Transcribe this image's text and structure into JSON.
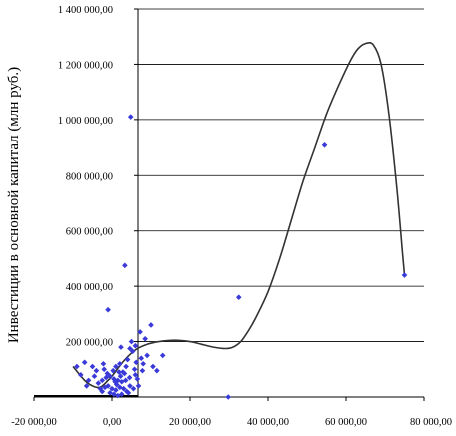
{
  "chart_data": {
    "type": "scatter",
    "title": "",
    "xlabel": "",
    "ylabel": "Инвестиции в основной капитал (млн руб.)",
    "xlim": [
      -20000,
      80000
    ],
    "ylim": [
      0,
      1400000
    ],
    "x_ticks": [
      -20000,
      0,
      20000,
      40000,
      60000,
      80000
    ],
    "x_tick_labels": [
      "-20 000,00",
      "0,00",
      "20 000,00",
      "40 000,00",
      "60 000,00",
      "80 000,00"
    ],
    "y_ticks": [
      0,
      200000,
      400000,
      600000,
      800000,
      1000000,
      1200000,
      1400000
    ],
    "y_tick_labels": [
      "",
      "200 000,00",
      "400 000,00",
      "600 000,00",
      "800 000,00",
      "1 000 000,00",
      "1 200 000,00",
      "1 400 000,00"
    ],
    "grid": "horizontal",
    "colors": {
      "points": "#3a3ad8",
      "trend": "#333333",
      "grid": "#000000"
    },
    "series": [
      {
        "kind": "points",
        "points": [
          [
            4800,
            1010000
          ],
          [
            3300,
            475000
          ],
          [
            -1000,
            315000
          ],
          [
            32500,
            360000
          ],
          [
            54500,
            910000
          ],
          [
            75000,
            440000
          ],
          [
            29800,
            0
          ],
          [
            10000,
            260000
          ],
          [
            8500,
            210000
          ],
          [
            7200,
            235000
          ],
          [
            5000,
            200000
          ],
          [
            6000,
            185000
          ],
          [
            4600,
            175000
          ],
          [
            5300,
            165000
          ],
          [
            2300,
            180000
          ],
          [
            7500,
            140000
          ],
          [
            9000,
            150000
          ],
          [
            13000,
            150000
          ],
          [
            8000,
            120000
          ],
          [
            10500,
            110000
          ],
          [
            11500,
            95000
          ],
          [
            4000,
            135000
          ],
          [
            2000,
            120000
          ],
          [
            1000,
            110000
          ],
          [
            -2000,
            100000
          ],
          [
            -4000,
            95000
          ],
          [
            -5000,
            110000
          ],
          [
            -8000,
            80000
          ],
          [
            -1500,
            70000
          ],
          [
            -2500,
            60000
          ],
          [
            -3500,
            50000
          ],
          [
            500,
            65000
          ],
          [
            1500,
            60000
          ],
          [
            2500,
            55000
          ],
          [
            3500,
            60000
          ],
          [
            4500,
            70000
          ],
          [
            6000,
            80000
          ],
          [
            6500,
            65000
          ],
          [
            -6000,
            60000
          ],
          [
            -1000,
            40000
          ],
          [
            0,
            30000
          ],
          [
            1000,
            25000
          ],
          [
            2000,
            35000
          ],
          [
            3000,
            30000
          ],
          [
            -500,
            15000
          ],
          [
            500,
            10000
          ],
          [
            1500,
            5000
          ],
          [
            2500,
            10000
          ],
          [
            -2500,
            20000
          ],
          [
            -3000,
            30000
          ],
          [
            3800,
            20000
          ],
          [
            4200,
            15000
          ],
          [
            5500,
            30000
          ],
          [
            6800,
            40000
          ],
          [
            -4500,
            75000
          ],
          [
            -1200,
            85000
          ],
          [
            2800,
            90000
          ],
          [
            7800,
            95000
          ],
          [
            -6500,
            40000
          ],
          [
            -9000,
            110000
          ],
          [
            -7000,
            125000
          ],
          [
            1200,
            45000
          ],
          [
            2200,
            75000
          ],
          [
            3200,
            85000
          ],
          [
            5800,
            100000
          ],
          [
            4600,
            40000
          ],
          [
            -1800,
            35000
          ],
          [
            800,
            55000
          ],
          [
            1800,
            90000
          ],
          [
            -2200,
            120000
          ],
          [
            3600,
            110000
          ],
          [
            6200,
            125000
          ],
          [
            -500,
            75000
          ],
          [
            300,
            95000
          ]
        ]
      },
      {
        "kind": "trend",
        "points": [
          [
            -10000,
            110000
          ],
          [
            -7000,
            60000
          ],
          [
            -5000,
            40000
          ],
          [
            -3000,
            35000
          ],
          [
            -1000,
            60000
          ],
          [
            0,
            75000
          ],
          [
            3000,
            130000
          ],
          [
            6000,
            170000
          ],
          [
            9000,
            190000
          ],
          [
            12000,
            200000
          ],
          [
            16000,
            205000
          ],
          [
            20000,
            200000
          ],
          [
            23000,
            190000
          ],
          [
            26000,
            180000
          ],
          [
            29000,
            175000
          ],
          [
            31000,
            180000
          ],
          [
            33000,
            200000
          ],
          [
            35000,
            240000
          ],
          [
            37000,
            290000
          ],
          [
            40000,
            380000
          ],
          [
            43000,
            500000
          ],
          [
            46000,
            640000
          ],
          [
            49000,
            780000
          ],
          [
            52000,
            900000
          ],
          [
            55000,
            1020000
          ],
          [
            58000,
            1120000
          ],
          [
            61000,
            1210000
          ],
          [
            63000,
            1255000
          ],
          [
            65000,
            1275000
          ],
          [
            67000,
            1270000
          ],
          [
            69000,
            1200000
          ],
          [
            71000,
            1020000
          ],
          [
            73000,
            760000
          ],
          [
            74500,
            520000
          ],
          [
            75000,
            440000
          ]
        ]
      }
    ]
  }
}
